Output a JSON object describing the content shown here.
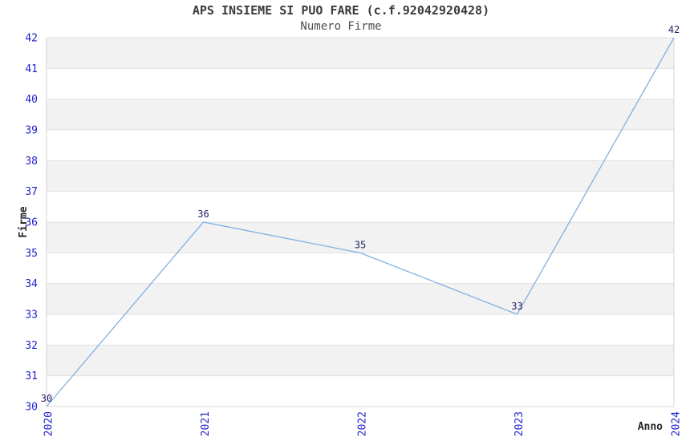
{
  "chart_data": {
    "type": "line",
    "title": "APS INSIEME SI PUO FARE (c.f.92042920428)",
    "subtitle": "Numero Firme",
    "xlabel": "Anno",
    "ylabel": "Firme",
    "x": [
      2020,
      2021,
      2022,
      2023,
      2024
    ],
    "values": [
      30,
      36,
      35,
      33,
      42
    ],
    "data_labels": [
      "30",
      "36",
      "35",
      "33",
      "42"
    ],
    "xticks": [
      "2020",
      "2021",
      "2022",
      "2023",
      "2024"
    ],
    "yticks": [
      30,
      31,
      32,
      33,
      34,
      35,
      36,
      37,
      38,
      39,
      40,
      41,
      42
    ],
    "ylim": [
      30,
      42
    ],
    "grid": "horizontal",
    "bands": "alternating",
    "legend": "none",
    "markers": "none",
    "colors": {
      "line": "#7FB1E3",
      "tick_label": "#2222CC",
      "data_label": "#222266",
      "band": "#F2F2F2",
      "gridline": "#E0E0E0",
      "spine": "#D4D4D4",
      "title": "#3A3A3A",
      "subtitle": "#4D4D4D",
      "axis_label": "#262626",
      "background": "#FFFFFF"
    }
  }
}
